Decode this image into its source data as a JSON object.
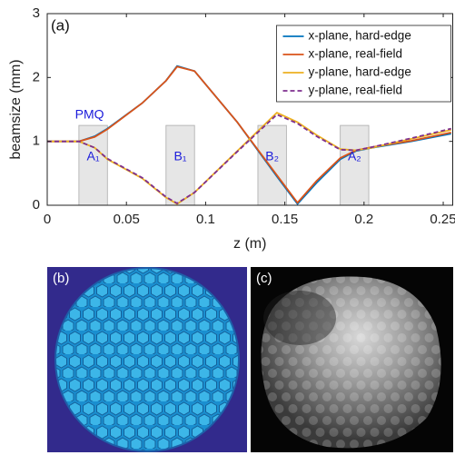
{
  "chart_data": {
    "type": "line",
    "panel_label": "(a)",
    "xlabel": "z (m)",
    "ylabel": "beamsize (mm)",
    "x": [
      0,
      0.02,
      0.03,
      0.038,
      0.06,
      0.075,
      0.082,
      0.093,
      0.12,
      0.145,
      0.158,
      0.17,
      0.185,
      0.195,
      0.205,
      0.23,
      0.255
    ],
    "series": [
      {
        "name": "x-plane, hard-edge",
        "color": "#0072bd",
        "dash": false,
        "values": [
          1,
          1,
          1.08,
          1.2,
          1.6,
          1.95,
          2.18,
          2.1,
          1.3,
          0.45,
          0.02,
          0.35,
          0.72,
          0.85,
          0.9,
          1.0,
          1.12
        ]
      },
      {
        "name": "x-plane, real-field",
        "color": "#d95319",
        "dash": false,
        "values": [
          1,
          1,
          1.07,
          1.19,
          1.6,
          1.95,
          2.17,
          2.1,
          1.3,
          0.47,
          0.04,
          0.38,
          0.74,
          0.86,
          0.91,
          1.01,
          1.14
        ]
      },
      {
        "name": "y-plane, hard-edge",
        "color": "#edb120",
        "dash": false,
        "values": [
          1,
          1,
          0.9,
          0.72,
          0.42,
          0.12,
          0.02,
          0.2,
          0.85,
          1.45,
          1.3,
          1.1,
          0.88,
          0.86,
          0.9,
          1.04,
          1.18
        ]
      },
      {
        "name": "y-plane, real-field",
        "color": "#7e2f8e",
        "dash": true,
        "values": [
          1,
          1,
          0.9,
          0.73,
          0.43,
          0.13,
          0.03,
          0.2,
          0.84,
          1.42,
          1.28,
          1.08,
          0.87,
          0.86,
          0.91,
          1.05,
          1.2
        ]
      }
    ],
    "magnet_group_label": "PMQ",
    "magnet_height": 1.25,
    "magnets": [
      {
        "label": "A₁",
        "z": [
          0.02,
          0.038
        ]
      },
      {
        "label": "B₁",
        "z": [
          0.075,
          0.093
        ]
      },
      {
        "label": "B₂",
        "z": [
          0.133,
          0.151
        ]
      },
      {
        "label": "A₂",
        "z": [
          0.185,
          0.203
        ]
      }
    ],
    "xlim": [
      0,
      0.256
    ],
    "ylim": [
      0,
      3
    ],
    "xticks": [
      0,
      0.05,
      0.1,
      0.15,
      0.2,
      0.25
    ],
    "yticks": [
      0,
      1,
      2,
      3
    ],
    "legend": "upper right"
  },
  "panels": [
    "(b)",
    "(c)"
  ]
}
